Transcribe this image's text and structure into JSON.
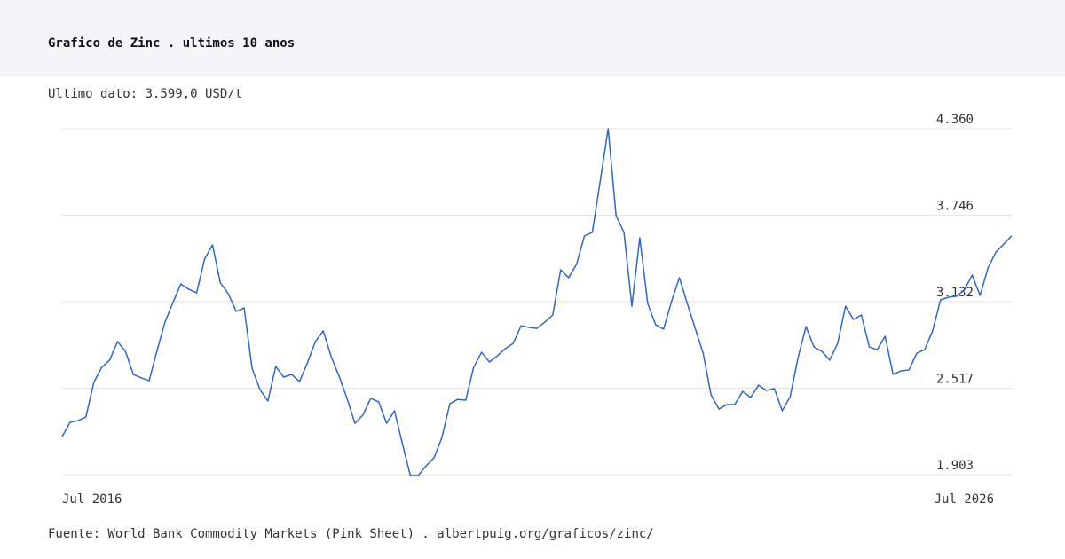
{
  "chart_data": {
    "type": "line",
    "title": "Grafico de Zinc . ultimos 10 anos",
    "subtitle": "Ultimo dato: 3.599,0 USD/t",
    "source": "Fuente: World Bank Commodity Markets (Pink Sheet) . albertpuig.org/graficos/zinc/",
    "categories": [
      "Jul 2016",
      null,
      null,
      null,
      null,
      null,
      null,
      null,
      null,
      null,
      null,
      null,
      null,
      null,
      null,
      null,
      null,
      null,
      null,
      null,
      null,
      null,
      null,
      null,
      null,
      null,
      null,
      null,
      null,
      null,
      null,
      null,
      null,
      null,
      null,
      null,
      null,
      null,
      null,
      null,
      null,
      null,
      null,
      null,
      null,
      null,
      null,
      null,
      null,
      null,
      null,
      null,
      null,
      null,
      null,
      null,
      null,
      null,
      null,
      null,
      null,
      null,
      null,
      null,
      null,
      null,
      null,
      null,
      null,
      null,
      null,
      null,
      null,
      null,
      null,
      null,
      null,
      null,
      null,
      null,
      null,
      null,
      null,
      null,
      null,
      null,
      null,
      null,
      null,
      null,
      null,
      null,
      null,
      null,
      null,
      null,
      null,
      null,
      null,
      null,
      null,
      null,
      null,
      null,
      null,
      null,
      null,
      null,
      null,
      null,
      null,
      null,
      null,
      null,
      null,
      null,
      null,
      null,
      null,
      null,
      "Jul 2026"
    ],
    "values": [
      2174,
      2275,
      2287,
      2312,
      2558,
      2665,
      2716,
      2848,
      2779,
      2615,
      2590,
      2571,
      2785,
      2987,
      3125,
      3257,
      3220,
      3194,
      3434,
      3535,
      3264,
      3188,
      3062,
      3087,
      2659,
      2508,
      2426,
      2672,
      2596,
      2615,
      2564,
      2697,
      2848,
      2924,
      2741,
      2602,
      2445,
      2268,
      2325,
      2445,
      2420,
      2268,
      2357,
      2123,
      1897,
      1897,
      1966,
      2023,
      2168,
      2407,
      2438,
      2432,
      2665,
      2772,
      2703,
      2747,
      2798,
      2835,
      2961,
      2949,
      2942,
      2987,
      3037,
      3358,
      3302,
      3396,
      3598,
      3623,
      3988,
      4360,
      3743,
      3623,
      3100,
      3585,
      3119,
      2968,
      2936,
      3131,
      3302,
      3119,
      2942,
      2766,
      2470,
      2369,
      2401,
      2401,
      2495,
      2451,
      2539,
      2501,
      2514,
      2357,
      2457,
      2735,
      2955,
      2810,
      2779,
      2716,
      2835,
      3100,
      3005,
      3037,
      2810,
      2791,
      2886,
      2615,
      2640,
      2646,
      2766,
      2791,
      2924,
      3144,
      3163,
      3169,
      3213,
      3320,
      3176,
      3371,
      3484,
      3541,
      3599
    ],
    "color": "#2f66c8",
    "ylim": [
      1903,
      4360
    ],
    "yticks": [
      {
        "value": 1903,
        "label": "1.903"
      },
      {
        "value": 2517,
        "label": "2.517"
      },
      {
        "value": 3132,
        "label": "3.132"
      },
      {
        "value": 3746,
        "label": "3.746"
      },
      {
        "value": 4360,
        "label": "4.360"
      }
    ],
    "grid": true
  }
}
